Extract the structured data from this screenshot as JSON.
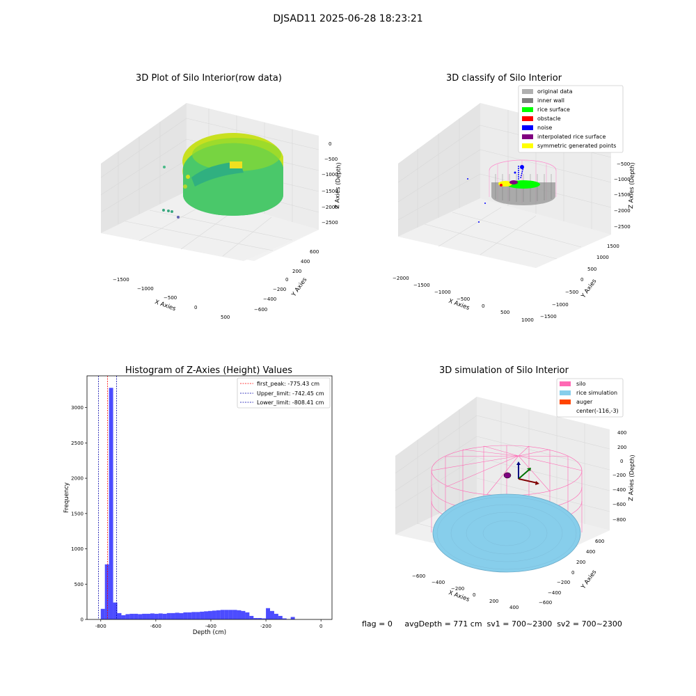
{
  "figure": {
    "suptitle": "DJSAD11 2025-06-28 18:23:21",
    "status_text": "flag = 0     avgDepth = 771 cm  sv1 = 700~2300  sv2 = 700~2300"
  },
  "chart_data": [
    {
      "type": "scatter",
      "projection": "3d",
      "title": "3D Plot of Silo Interior(row data)",
      "xlabel": "X Axies",
      "ylabel": "Y Axies",
      "zlabel": "Z Axies (Depth)",
      "x_ticks": [
        "−1500",
        "−1000",
        "−500",
        "0",
        "500"
      ],
      "y_ticks": [
        "−600",
        "−400",
        "−200",
        "0",
        "200",
        "400",
        "600"
      ],
      "z_ticks": [
        "−2500",
        "−2000",
        "−1500",
        "−1000",
        "−500",
        "0"
      ],
      "colormap": "viridis",
      "grid": true
    },
    {
      "type": "scatter",
      "projection": "3d",
      "title": "3D classify of Silo Interior",
      "xlabel": "X Axies",
      "ylabel": "Y Axies",
      "zlabel": "Z Axies (Depth)",
      "x_ticks": [
        "−2000",
        "−1500",
        "−1000",
        "−500",
        "0",
        "500",
        "1000"
      ],
      "y_ticks": [
        "−1500",
        "−1000",
        "−500",
        "0",
        "500",
        "1000",
        "1500"
      ],
      "z_ticks": [
        "−2500",
        "−2000",
        "−1500",
        "−1000",
        "−500"
      ],
      "legend_position": "top-right",
      "legend": [
        {
          "label": "original data",
          "color": "#b0b0b0"
        },
        {
          "label": "inner wall",
          "color": "#808080"
        },
        {
          "label": "rice surface",
          "color": "#00ff00"
        },
        {
          "label": "obstacle",
          "color": "#ff0000"
        },
        {
          "label": "noise",
          "color": "#0000ff"
        },
        {
          "label": "interpolated rice surface",
          "color": "#800080"
        },
        {
          "label": "symmetric generated points",
          "color": "#ffff00"
        }
      ],
      "grid": true
    },
    {
      "type": "bar",
      "title": "Histogram of Z-Axies (Height) Values",
      "xlabel": "Depth (cm)",
      "ylabel": "Frequency",
      "xlim": [
        -850,
        40
      ],
      "ylim": [
        0,
        3450
      ],
      "x_ticks": [
        -800,
        -600,
        -400,
        -200,
        0
      ],
      "y_ticks": [
        0,
        500,
        1000,
        1500,
        2000,
        2500,
        3000
      ],
      "bin_width": 15,
      "bin_start": -800,
      "values": [
        150,
        780,
        3280,
        240,
        90,
        60,
        75,
        80,
        80,
        75,
        80,
        80,
        85,
        80,
        85,
        80,
        90,
        90,
        95,
        90,
        100,
        100,
        105,
        105,
        110,
        115,
        120,
        125,
        130,
        135,
        135,
        135,
        135,
        130,
        120,
        100,
        50,
        20,
        20,
        15,
        160,
        120,
        80,
        50,
        15,
        5,
        35
      ],
      "color": "#0000ff",
      "opacity": 0.7,
      "legend_position": "top-right",
      "vlines": [
        {
          "label": "first_peak: -775.43 cm",
          "x": -775.43,
          "color": "#ff0000"
        },
        {
          "label": "Upper_limit: -742.45 cm",
          "x": -742.45,
          "color": "#0000aa"
        },
        {
          "label": "Lower_limit: -808.41 cm",
          "x": -808.41,
          "color": "#0000aa"
        }
      ]
    },
    {
      "type": "surface",
      "projection": "3d",
      "title": "3D simulation of Silo Interior",
      "xlabel": "X Axies",
      "ylabel": "Y Axies",
      "zlabel": "Z Axies (Depth)",
      "x_ticks": [
        "−600",
        "−400",
        "−200",
        "0",
        "200",
        "400"
      ],
      "y_ticks": [
        "−600",
        "−400",
        "−200",
        "0",
        "200",
        "400",
        "600"
      ],
      "z_ticks": [
        "−800",
        "−600",
        "−400",
        "−200",
        "0",
        "200",
        "400"
      ],
      "legend_position": "top-right",
      "legend": [
        {
          "label": "silo",
          "color": "#ff69b4"
        },
        {
          "label": "rice simulation",
          "color": "#87ceeb"
        },
        {
          "label": "auger",
          "color": "#ff4500"
        },
        {
          "label": "center(-116,-3)",
          "color": ""
        }
      ],
      "grid": true
    }
  ]
}
